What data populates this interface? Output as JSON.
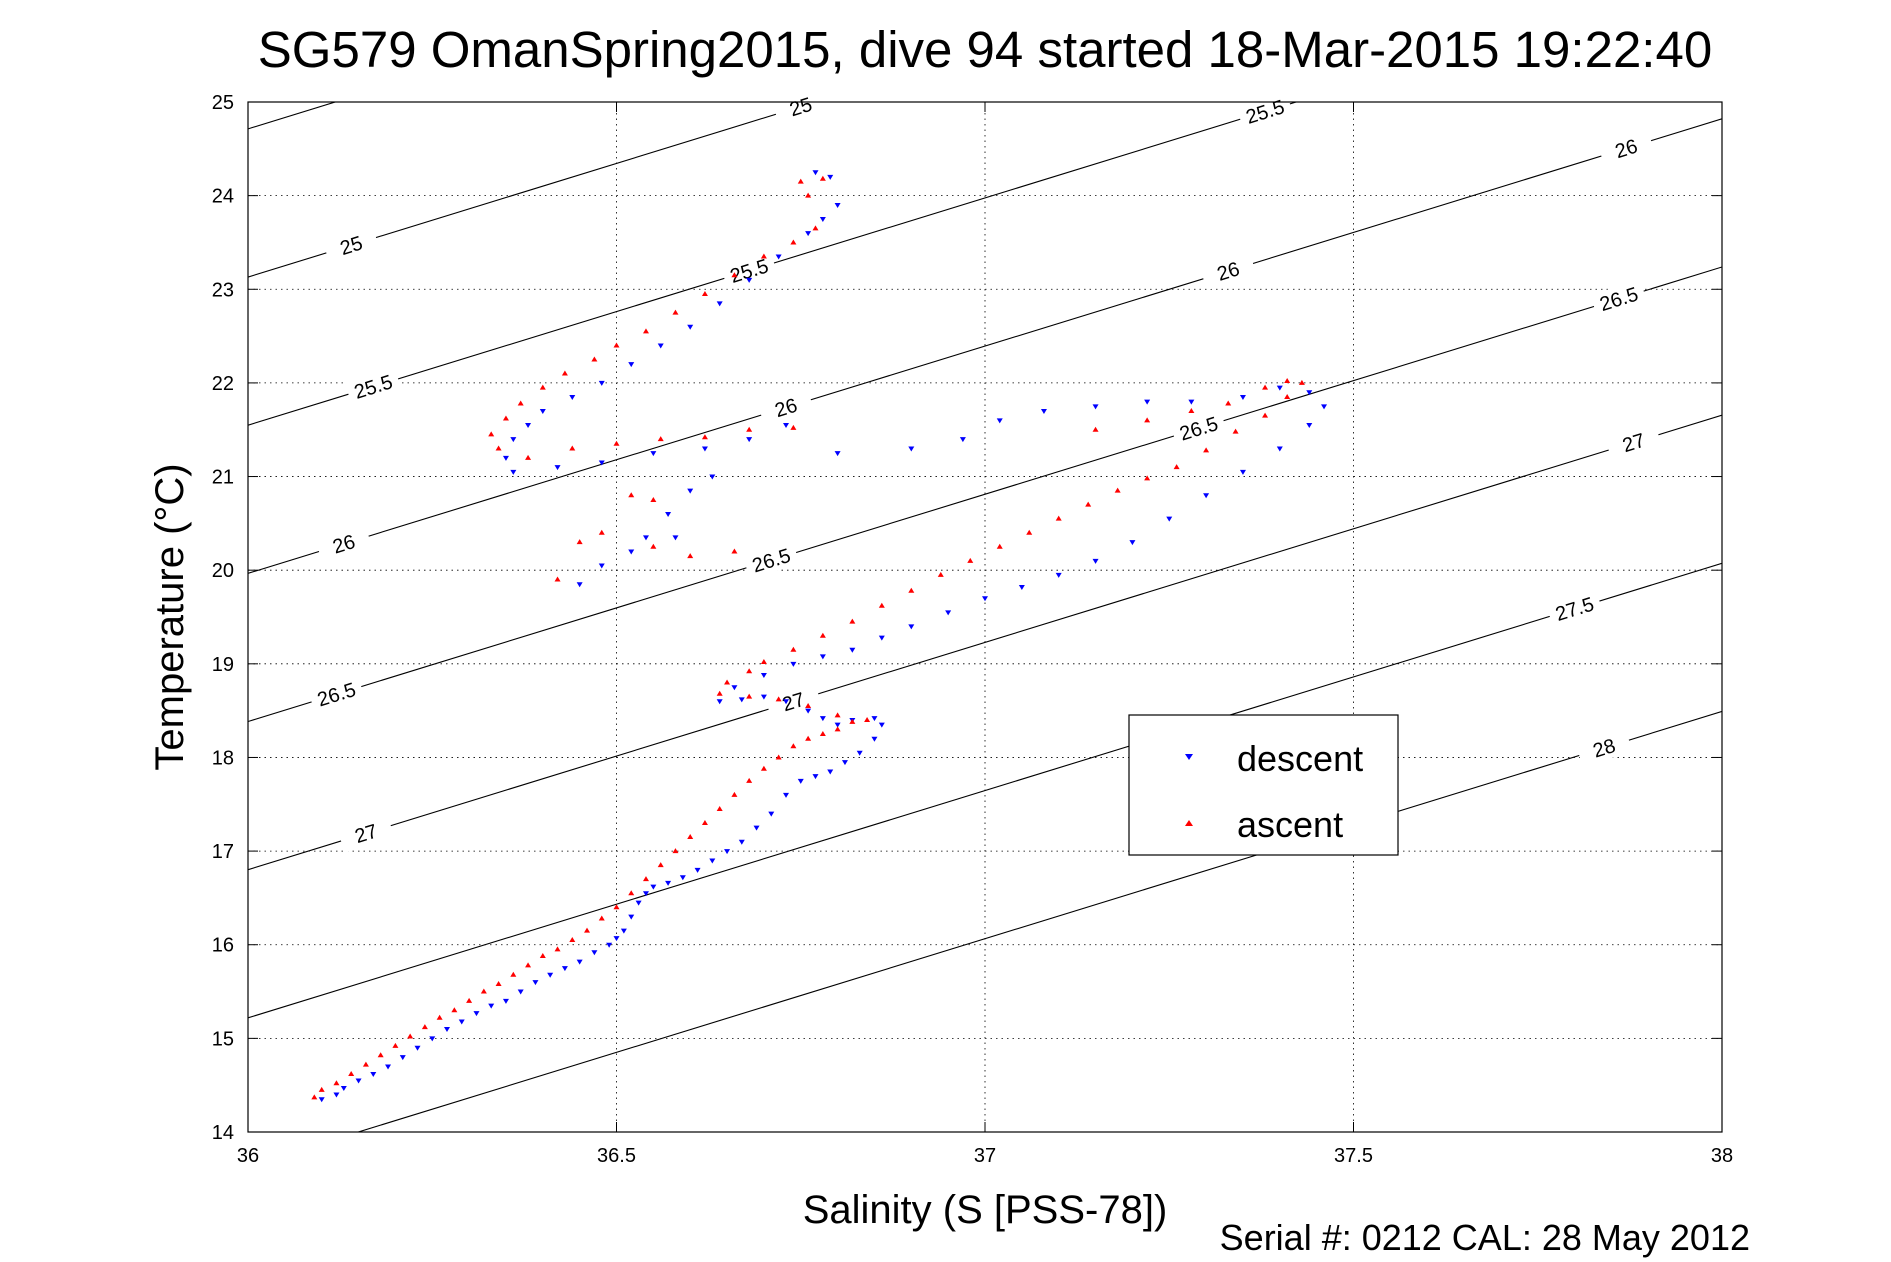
{
  "figure": {
    "title": "SG579 OmanSpring2015, dive 94 started 18-Mar-2015 19:22:40",
    "xlabel": "Salinity (S [PSS-78])",
    "ylabel": "Temperature (°C)",
    "footer": "Serial #: 0212  CAL: 28 May 2012"
  },
  "chart_data": {
    "type": "scatter",
    "title": "SG579 OmanSpring2015, dive 94 started 18-Mar-2015 19:22:40",
    "xlabel": "Salinity (S [PSS-78])",
    "ylabel": "Temperature (°C)",
    "xlim": [
      36,
      38
    ],
    "ylim": [
      14,
      25
    ],
    "xticks": [
      "36",
      "36.5",
      "37",
      "37.5",
      "38"
    ],
    "yticks": [
      "14",
      "15",
      "16",
      "17",
      "18",
      "19",
      "20",
      "21",
      "22",
      "23",
      "24",
      "25"
    ],
    "grid": true,
    "legend_position": "center-right",
    "isopycnals": {
      "note": "density (sigma-theta) contour lines",
      "levels": [
        "24.5",
        "25",
        "25.5",
        "26",
        "26.5",
        "27",
        "27.5",
        "28"
      ],
      "color": "#000000"
    },
    "series": [
      {
        "name": "descent",
        "marker": "triangle-down",
        "color": "#0000ff",
        "points": [
          [
            36.1,
            14.35
          ],
          [
            36.12,
            14.4
          ],
          [
            36.13,
            14.47
          ],
          [
            36.15,
            14.55
          ],
          [
            36.17,
            14.62
          ],
          [
            36.19,
            14.7
          ],
          [
            36.21,
            14.8
          ],
          [
            36.23,
            14.9
          ],
          [
            36.25,
            15.0
          ],
          [
            36.27,
            15.1
          ],
          [
            36.29,
            15.18
          ],
          [
            36.31,
            15.27
          ],
          [
            36.33,
            15.35
          ],
          [
            36.35,
            15.4
          ],
          [
            36.37,
            15.5
          ],
          [
            36.39,
            15.6
          ],
          [
            36.41,
            15.68
          ],
          [
            36.43,
            15.75
          ],
          [
            36.45,
            15.82
          ],
          [
            36.47,
            15.92
          ],
          [
            36.49,
            16.0
          ],
          [
            36.5,
            16.07
          ],
          [
            36.51,
            16.15
          ],
          [
            36.52,
            16.3
          ],
          [
            36.53,
            16.45
          ],
          [
            36.54,
            16.55
          ],
          [
            36.55,
            16.62
          ],
          [
            36.57,
            16.66
          ],
          [
            36.59,
            16.72
          ],
          [
            36.61,
            16.8
          ],
          [
            36.63,
            16.9
          ],
          [
            36.65,
            17.0
          ],
          [
            36.67,
            17.1
          ],
          [
            36.69,
            17.25
          ],
          [
            36.71,
            17.4
          ],
          [
            36.73,
            17.6
          ],
          [
            36.75,
            17.75
          ],
          [
            36.77,
            17.8
          ],
          [
            36.79,
            17.85
          ],
          [
            36.81,
            17.95
          ],
          [
            36.83,
            18.05
          ],
          [
            36.85,
            18.2
          ],
          [
            36.86,
            18.35
          ],
          [
            36.85,
            18.42
          ],
          [
            36.82,
            18.4
          ],
          [
            36.8,
            18.35
          ],
          [
            36.78,
            18.42
          ],
          [
            36.76,
            18.5
          ],
          [
            36.73,
            18.6
          ],
          [
            36.7,
            18.65
          ],
          [
            36.67,
            18.62
          ],
          [
            36.64,
            18.6
          ],
          [
            36.66,
            18.75
          ],
          [
            36.7,
            18.88
          ],
          [
            36.74,
            19.0
          ],
          [
            36.78,
            19.08
          ],
          [
            36.82,
            19.15
          ],
          [
            36.86,
            19.28
          ],
          [
            36.9,
            19.4
          ],
          [
            36.95,
            19.55
          ],
          [
            37.0,
            19.7
          ],
          [
            37.05,
            19.82
          ],
          [
            37.1,
            19.95
          ],
          [
            37.15,
            20.1
          ],
          [
            37.2,
            20.3
          ],
          [
            37.25,
            20.55
          ],
          [
            37.3,
            20.8
          ],
          [
            37.35,
            21.05
          ],
          [
            37.4,
            21.3
          ],
          [
            37.44,
            21.55
          ],
          [
            37.46,
            21.75
          ],
          [
            37.44,
            21.9
          ],
          [
            37.4,
            21.95
          ],
          [
            37.35,
            21.85
          ],
          [
            37.28,
            21.8
          ],
          [
            37.22,
            21.8
          ],
          [
            37.15,
            21.75
          ],
          [
            37.08,
            21.7
          ],
          [
            37.02,
            21.6
          ],
          [
            36.97,
            21.4
          ],
          [
            36.9,
            21.3
          ],
          [
            36.8,
            21.25
          ],
          [
            36.73,
            21.55
          ],
          [
            36.68,
            21.4
          ],
          [
            36.62,
            21.3
          ],
          [
            36.55,
            21.25
          ],
          [
            36.48,
            21.15
          ],
          [
            36.42,
            21.1
          ],
          [
            36.36,
            21.05
          ],
          [
            36.35,
            21.2
          ],
          [
            36.36,
            21.4
          ],
          [
            36.38,
            21.55
          ],
          [
            36.4,
            21.7
          ],
          [
            36.44,
            21.85
          ],
          [
            36.48,
            22.0
          ],
          [
            36.52,
            22.2
          ],
          [
            36.56,
            22.4
          ],
          [
            36.6,
            22.6
          ],
          [
            36.64,
            22.85
          ],
          [
            36.68,
            23.1
          ],
          [
            36.72,
            23.35
          ],
          [
            36.76,
            23.6
          ],
          [
            36.78,
            23.75
          ],
          [
            36.8,
            23.9
          ],
          [
            36.79,
            24.2
          ],
          [
            36.77,
            24.25
          ],
          [
            36.52,
            20.2
          ],
          [
            36.54,
            20.35
          ],
          [
            36.57,
            20.6
          ],
          [
            36.6,
            20.85
          ],
          [
            36.63,
            21.0
          ],
          [
            36.45,
            19.85
          ],
          [
            36.48,
            20.05
          ],
          [
            36.58,
            20.35
          ]
        ]
      },
      {
        "name": "ascent",
        "marker": "triangle-up",
        "color": "#ff0000",
        "points": [
          [
            36.09,
            14.37
          ],
          [
            36.1,
            14.45
          ],
          [
            36.12,
            14.52
          ],
          [
            36.14,
            14.62
          ],
          [
            36.16,
            14.72
          ],
          [
            36.18,
            14.82
          ],
          [
            36.2,
            14.92
          ],
          [
            36.22,
            15.02
          ],
          [
            36.24,
            15.12
          ],
          [
            36.26,
            15.22
          ],
          [
            36.28,
            15.3
          ],
          [
            36.3,
            15.4
          ],
          [
            36.32,
            15.5
          ],
          [
            36.34,
            15.58
          ],
          [
            36.36,
            15.68
          ],
          [
            36.38,
            15.78
          ],
          [
            36.4,
            15.88
          ],
          [
            36.42,
            15.95
          ],
          [
            36.44,
            16.05
          ],
          [
            36.46,
            16.15
          ],
          [
            36.48,
            16.28
          ],
          [
            36.5,
            16.4
          ],
          [
            36.52,
            16.55
          ],
          [
            36.54,
            16.7
          ],
          [
            36.56,
            16.85
          ],
          [
            36.58,
            17.0
          ],
          [
            36.6,
            17.15
          ],
          [
            36.62,
            17.3
          ],
          [
            36.64,
            17.45
          ],
          [
            36.66,
            17.6
          ],
          [
            36.68,
            17.75
          ],
          [
            36.7,
            17.88
          ],
          [
            36.72,
            18.0
          ],
          [
            36.74,
            18.12
          ],
          [
            36.76,
            18.2
          ],
          [
            36.78,
            18.25
          ],
          [
            36.8,
            18.3
          ],
          [
            36.82,
            18.38
          ],
          [
            36.84,
            18.4
          ],
          [
            36.8,
            18.45
          ],
          [
            36.76,
            18.55
          ],
          [
            36.72,
            18.62
          ],
          [
            36.68,
            18.65
          ],
          [
            36.64,
            18.68
          ],
          [
            36.65,
            18.8
          ],
          [
            36.68,
            18.92
          ],
          [
            36.7,
            19.02
          ],
          [
            36.74,
            19.15
          ],
          [
            36.78,
            19.3
          ],
          [
            36.82,
            19.45
          ],
          [
            36.86,
            19.62
          ],
          [
            36.9,
            19.78
          ],
          [
            36.94,
            19.95
          ],
          [
            36.98,
            20.1
          ],
          [
            37.02,
            20.25
          ],
          [
            37.06,
            20.4
          ],
          [
            37.1,
            20.55
          ],
          [
            37.14,
            20.7
          ],
          [
            37.18,
            20.85
          ],
          [
            37.22,
            20.98
          ],
          [
            37.26,
            21.1
          ],
          [
            37.3,
            21.28
          ],
          [
            37.34,
            21.48
          ],
          [
            37.38,
            21.65
          ],
          [
            37.41,
            21.85
          ],
          [
            37.43,
            22.0
          ],
          [
            37.41,
            22.02
          ],
          [
            37.38,
            21.95
          ],
          [
            37.33,
            21.78
          ],
          [
            37.28,
            21.7
          ],
          [
            37.22,
            21.6
          ],
          [
            37.15,
            21.5
          ],
          [
            36.74,
            21.52
          ],
          [
            36.68,
            21.5
          ],
          [
            36.62,
            21.42
          ],
          [
            36.56,
            21.4
          ],
          [
            36.5,
            21.35
          ],
          [
            36.44,
            21.3
          ],
          [
            36.38,
            21.2
          ],
          [
            36.34,
            21.3
          ],
          [
            36.33,
            21.45
          ],
          [
            36.35,
            21.62
          ],
          [
            36.37,
            21.78
          ],
          [
            36.4,
            21.95
          ],
          [
            36.43,
            22.1
          ],
          [
            36.47,
            22.25
          ],
          [
            36.5,
            22.4
          ],
          [
            36.54,
            22.55
          ],
          [
            36.58,
            22.75
          ],
          [
            36.62,
            22.95
          ],
          [
            36.66,
            23.15
          ],
          [
            36.7,
            23.35
          ],
          [
            36.74,
            23.5
          ],
          [
            36.77,
            23.65
          ],
          [
            36.76,
            24.0
          ],
          [
            36.75,
            24.15
          ],
          [
            36.78,
            24.18
          ],
          [
            36.52,
            20.8
          ],
          [
            36.55,
            20.75
          ],
          [
            36.45,
            20.3
          ],
          [
            36.48,
            20.4
          ],
          [
            36.55,
            20.25
          ],
          [
            36.6,
            20.15
          ],
          [
            36.66,
            20.2
          ],
          [
            36.42,
            19.9
          ]
        ]
      }
    ]
  }
}
